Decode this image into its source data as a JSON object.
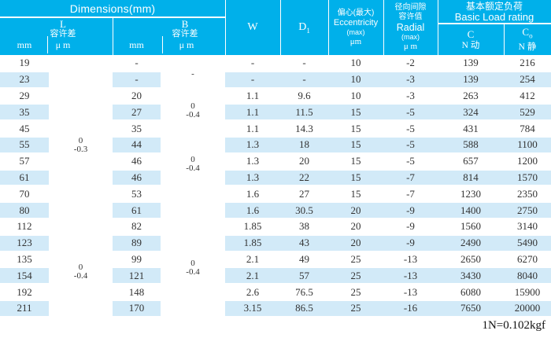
{
  "colors": {
    "header_bg": "#00b0ea",
    "header_text": "#ffffff",
    "stripe": "#d2eaf8",
    "text": "#333333"
  },
  "table": {
    "header": {
      "dimensions_label": "Dimensions(mm)",
      "l_group": {
        "label": "L",
        "tol_label": "容许差",
        "unit_mm": "mm",
        "unit_um": "μ m"
      },
      "b_group": {
        "label": "B",
        "tol_label": "容许差",
        "unit_mm": "mm",
        "unit_um": "μ m"
      },
      "w_label": "W",
      "d1_label": "D",
      "d1_sub": "1",
      "ecc": {
        "cn": "偏心(最大)",
        "en": "Eccentricity",
        "max": "(max)",
        "unit": "μm"
      },
      "radial": {
        "cn1": "径向间隙",
        "cn2": "容许值",
        "en": "Radial",
        "max": "(max)",
        "unit": "μ m"
      },
      "load": {
        "cn": "基本额定负荷",
        "en": "Basic Load rating",
        "c_label": "C",
        "c_unit": "N 动",
        "co_label": "C",
        "co_sub": "o",
        "co_unit": "N 静"
      }
    },
    "tolerances": {
      "l_rows_1_10": "0\n-0.3",
      "l_rows_11_16": "0\n-0.4",
      "b_rows_1_2": "-",
      "b_rows_3_5": "0\n-0.4",
      "b_rows_6_10": "0\n-0.4",
      "b_rows_11_16": "0\n-0.4"
    },
    "rows": [
      {
        "l": "19",
        "b": "-",
        "w": "-",
        "d1": "-",
        "ecc": "10",
        "radial": "-2",
        "c": "139",
        "co": "216"
      },
      {
        "l": "23",
        "b": "-",
        "w": "-",
        "d1": "-",
        "ecc": "10",
        "radial": "-3",
        "c": "139",
        "co": "254"
      },
      {
        "l": "29",
        "b": "20",
        "w": "1.1",
        "d1": "9.6",
        "ecc": "10",
        "radial": "-3",
        "c": "263",
        "co": "412"
      },
      {
        "l": "35",
        "b": "27",
        "w": "1.1",
        "d1": "11.5",
        "ecc": "15",
        "radial": "-5",
        "c": "324",
        "co": "529"
      },
      {
        "l": "45",
        "b": "35",
        "w": "1.1",
        "d1": "14.3",
        "ecc": "15",
        "radial": "-5",
        "c": "431",
        "co": "784"
      },
      {
        "l": "55",
        "b": "44",
        "w": "1.3",
        "d1": "18",
        "ecc": "15",
        "radial": "-5",
        "c": "588",
        "co": "1100"
      },
      {
        "l": "57",
        "b": "46",
        "w": "1.3",
        "d1": "20",
        "ecc": "15",
        "radial": "-5",
        "c": "657",
        "co": "1200"
      },
      {
        "l": "61",
        "b": "46",
        "w": "1.3",
        "d1": "22",
        "ecc": "15",
        "radial": "-7",
        "c": "814",
        "co": "1570"
      },
      {
        "l": "70",
        "b": "53",
        "w": "1.6",
        "d1": "27",
        "ecc": "15",
        "radial": "-7",
        "c": "1230",
        "co": "2350"
      },
      {
        "l": "80",
        "b": "61",
        "w": "1.6",
        "d1": "30.5",
        "ecc": "20",
        "radial": "-9",
        "c": "1400",
        "co": "2750"
      },
      {
        "l": "112",
        "b": "82",
        "w": "1.85",
        "d1": "38",
        "ecc": "20",
        "radial": "-9",
        "c": "1560",
        "co": "3140"
      },
      {
        "l": "123",
        "b": "89",
        "w": "1.85",
        "d1": "43",
        "ecc": "20",
        "radial": "-9",
        "c": "2490",
        "co": "5490"
      },
      {
        "l": "135",
        "b": "99",
        "w": "2.1",
        "d1": "49",
        "ecc": "25",
        "radial": "-13",
        "c": "2650",
        "co": "6270"
      },
      {
        "l": "154",
        "b": "121",
        "w": "2.1",
        "d1": "57",
        "ecc": "25",
        "radial": "-13",
        "c": "3430",
        "co": "8040"
      },
      {
        "l": "192",
        "b": "148",
        "w": "2.6",
        "d1": "76.5",
        "ecc": "25",
        "radial": "-13",
        "c": "6080",
        "co": "15900"
      },
      {
        "l": "211",
        "b": "170",
        "w": "3.15",
        "d1": "86.5",
        "ecc": "25",
        "radial": "-16",
        "c": "7650",
        "co": "20000"
      }
    ]
  },
  "footer": {
    "note": "1N=0.102kgf"
  }
}
